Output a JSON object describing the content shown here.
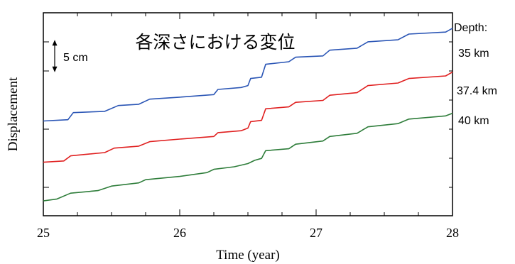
{
  "chart_data": {
    "type": "line",
    "title": "各深さにおける変位",
    "xlabel": "Time (year)",
    "ylabel": "Displacement",
    "xlim": [
      25,
      28
    ],
    "xticks": [
      "25",
      "26",
      "27",
      "28"
    ],
    "grid": false,
    "legend_title": "Depth:",
    "legend_placement": "right",
    "scale_bar": {
      "label": "5 cm",
      "length_cm": 5
    },
    "y_units": "cm (relative)",
    "ylim": [
      0,
      31.5
    ],
    "series": [
      {
        "name": "35 km",
        "color": "#2a55b5",
        "x": [
          25.0,
          25.18,
          25.22,
          25.45,
          25.55,
          25.7,
          25.78,
          26.0,
          26.25,
          26.28,
          26.45,
          26.5,
          26.52,
          26.6,
          26.63,
          26.8,
          26.85,
          27.05,
          27.1,
          27.3,
          27.38,
          27.6,
          27.68,
          27.95,
          28.0
        ],
        "y": [
          14.7,
          14.9,
          16.0,
          16.2,
          17.1,
          17.3,
          18.1,
          18.4,
          18.8,
          19.6,
          19.9,
          20.2,
          21.3,
          21.5,
          23.5,
          23.9,
          24.6,
          24.8,
          25.7,
          26.0,
          27.0,
          27.3,
          28.2,
          28.5,
          29.1
        ]
      },
      {
        "name": "37.4 km",
        "color": "#e02020",
        "x": [
          25.0,
          25.15,
          25.2,
          25.45,
          25.52,
          25.7,
          25.78,
          26.0,
          26.25,
          26.28,
          26.45,
          26.5,
          26.52,
          26.6,
          26.63,
          26.8,
          26.85,
          27.05,
          27.1,
          27.3,
          27.38,
          27.6,
          27.68,
          27.95,
          28.0
        ],
        "y": [
          8.3,
          8.5,
          9.3,
          9.8,
          10.5,
          10.8,
          11.5,
          11.9,
          12.3,
          12.9,
          13.2,
          13.6,
          14.6,
          14.8,
          16.6,
          16.9,
          17.6,
          17.9,
          18.7,
          19.1,
          20.2,
          20.6,
          21.3,
          21.7,
          22.3
        ]
      },
      {
        "name": "40 km",
        "color": "#2e7d3a",
        "x": [
          25.0,
          25.1,
          25.2,
          25.4,
          25.5,
          25.7,
          25.75,
          26.0,
          26.2,
          26.25,
          26.4,
          26.5,
          26.55,
          26.6,
          26.63,
          26.8,
          26.85,
          27.05,
          27.1,
          27.3,
          27.38,
          27.6,
          27.68,
          27.95,
          28.0
        ],
        "y": [
          2.3,
          2.6,
          3.5,
          3.9,
          4.6,
          5.1,
          5.6,
          6.1,
          6.7,
          7.2,
          7.6,
          8.1,
          8.6,
          8.9,
          10.1,
          10.4,
          11.1,
          11.6,
          12.3,
          12.8,
          13.8,
          14.3,
          15.0,
          15.5,
          15.9
        ]
      }
    ]
  }
}
